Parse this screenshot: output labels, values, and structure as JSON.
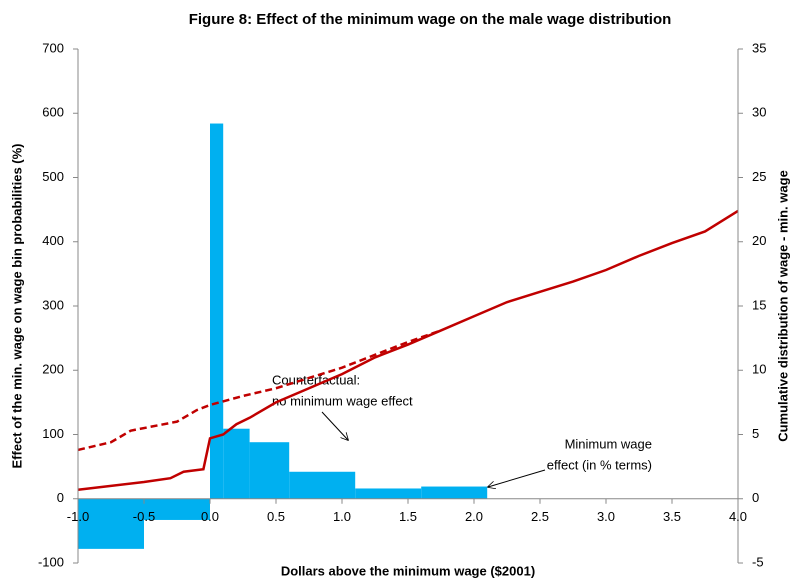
{
  "chart_data": {
    "type": "histogram",
    "title": "Figure 8: Effect of the minimum wage on the male wage distribution",
    "x_label": "Dollars above the minimum wage ($2001)",
    "y_label": "Effect of the min. wage on wage bin probabilities (%)",
    "y2_label": "Cumulative distribution of wage - min. wage",
    "bins": [
      -1.0,
      -0.5,
      0.0,
      0.1,
      0.3,
      0.6,
      1.1,
      1.6,
      2.1
    ],
    "values": [
      -78,
      -33,
      584,
      109,
      88,
      42,
      16,
      19
    ],
    "color": "#00b0f0",
    "series": [
      {
        "type": "line",
        "axis": "y2",
        "color": "#c00000",
        "dash": false,
        "x": [
          -1.0,
          -0.5,
          -0.3,
          -0.2,
          -0.05,
          0.0,
          0.1,
          0.2,
          0.3,
          0.5,
          0.75,
          1.0,
          1.25,
          1.5,
          1.75,
          2.0,
          2.25,
          2.5,
          2.75,
          3.0,
          3.25,
          3.5,
          3.75,
          4.0
        ],
        "values": [
          0.7,
          1.3,
          1.6,
          2.1,
          2.3,
          4.7,
          5.0,
          5.8,
          6.3,
          7.5,
          8.6,
          9.7,
          11.0,
          12.0,
          13.1,
          14.2,
          15.3,
          16.1,
          16.9,
          17.8,
          18.9,
          19.9,
          20.8,
          22.4
        ]
      },
      {
        "type": "line",
        "axis": "y2",
        "color": "#c00000",
        "dash": true,
        "x": [
          -1.0,
          -0.75,
          -0.6,
          -0.25,
          -0.1,
          0.0,
          0.25,
          0.5,
          0.75,
          1.0,
          1.25,
          1.5,
          1.75
        ],
        "values": [
          3.8,
          4.4,
          5.3,
          6.0,
          6.9,
          7.3,
          8.0,
          8.6,
          9.4,
          10.2,
          11.2,
          12.2,
          13.1
        ]
      }
    ],
    "annotations": [
      {
        "lines": [
          "Counterfactual:",
          "no minimum wage effect"
        ]
      },
      {
        "lines": [
          "Minimum wage",
          "effect (in % terms)"
        ]
      }
    ],
    "xlim": [
      -1.0,
      4.0
    ],
    "xticks": [
      {
        "value": -1.0,
        "label": "-1.0"
      },
      {
        "value": -0.5,
        "label": "-0.5"
      },
      {
        "value": 0.0,
        "label": "0.0"
      },
      {
        "value": 0.5,
        "label": "0.5"
      },
      {
        "value": 1.0,
        "label": "1.0"
      },
      {
        "value": 1.5,
        "label": "1.5"
      },
      {
        "value": 2.0,
        "label": "2.0"
      },
      {
        "value": 2.5,
        "label": "2.5"
      },
      {
        "value": 3.0,
        "label": "3.0"
      },
      {
        "value": 3.5,
        "label": "3.5"
      },
      {
        "value": 4.0,
        "label": "4.0"
      }
    ],
    "ylim": [
      -100,
      700
    ],
    "yticks": [
      -100,
      0,
      100,
      200,
      300,
      400,
      500,
      600,
      700
    ],
    "y2lim": [
      -5,
      35
    ],
    "y2ticks": [
      -5,
      0,
      5,
      10,
      15,
      20,
      25,
      30,
      35
    ],
    "grid": false
  }
}
